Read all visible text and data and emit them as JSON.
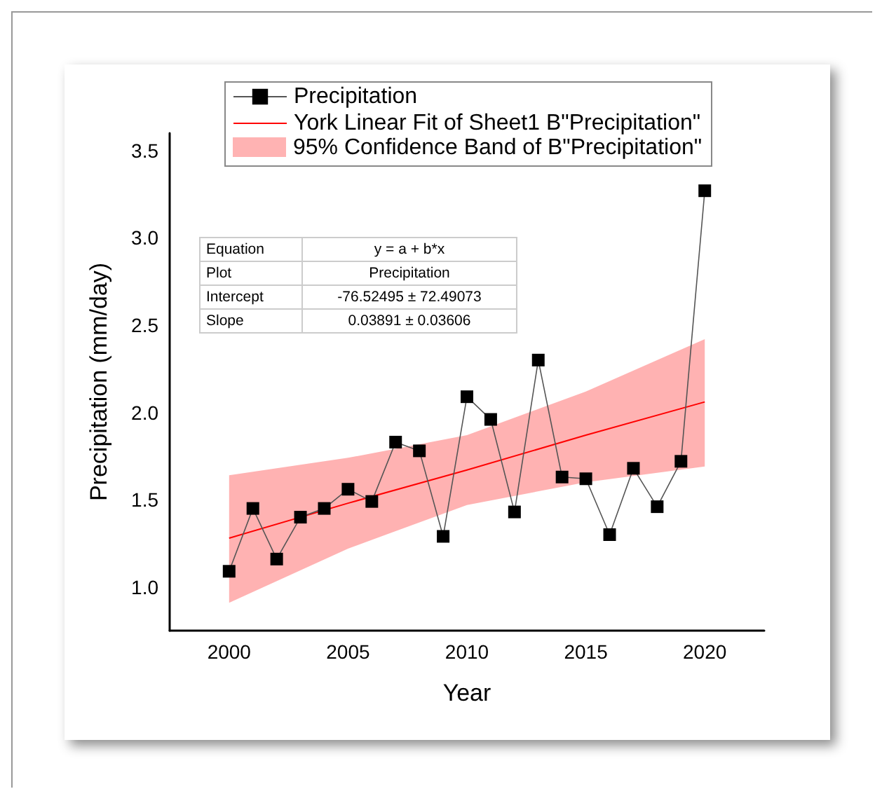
{
  "chart_data": {
    "type": "line",
    "xlabel": "Year",
    "ylabel": "Precipitation (mm/day)",
    "x": [
      2000,
      2001,
      2002,
      2003,
      2004,
      2005,
      2006,
      2007,
      2008,
      2009,
      2010,
      2011,
      2012,
      2013,
      2014,
      2015,
      2016,
      2017,
      2018,
      2019,
      2020
    ],
    "series": [
      {
        "name": "York Linear Fit of Sheet1 B\"Precipitation\"",
        "color": "#ff0000",
        "x": [
          2000,
          2005,
          2010,
          2015,
          2020
        ],
        "values": [
          1.28,
          1.48,
          1.67,
          1.87,
          2.06
        ],
        "lower": [
          0.91,
          1.22,
          1.47,
          1.6,
          1.69
        ],
        "upper": [
          1.64,
          1.74,
          1.87,
          2.12,
          2.42
        ],
        "marker": "none"
      },
      {
        "name": "Precipitation",
        "color": "#000000",
        "marker": "square",
        "values": [
          1.09,
          1.45,
          1.16,
          1.4,
          1.45,
          1.56,
          1.49,
          1.83,
          1.78,
          1.29,
          2.09,
          1.96,
          1.43,
          2.3,
          1.63,
          1.62,
          1.3,
          1.68,
          1.46,
          1.72,
          3.27
        ]
      }
    ],
    "xlim": [
      1997.5,
      2022.5
    ],
    "xticks": [
      2000,
      2005,
      2010,
      2015,
      2020
    ],
    "ylim": [
      0.75,
      3.6
    ],
    "yticks": [
      {
        "value": 1,
        "label": "1.0"
      },
      1.5,
      {
        "value": 2,
        "label": "2.0"
      },
      2.5,
      {
        "value": 3,
        "label": "3.0"
      },
      3.5
    ],
    "legend": "top",
    "annotations": [
      "95% Confidence Band of B\"Precipitation\"",
      "Equation",
      "y = a + b*x",
      "Plot",
      "Precipitation",
      "Intercept",
      "-76.52495 ± 72.49073",
      "Slope",
      "0.03891 ± 0.03606"
    ]
  }
}
